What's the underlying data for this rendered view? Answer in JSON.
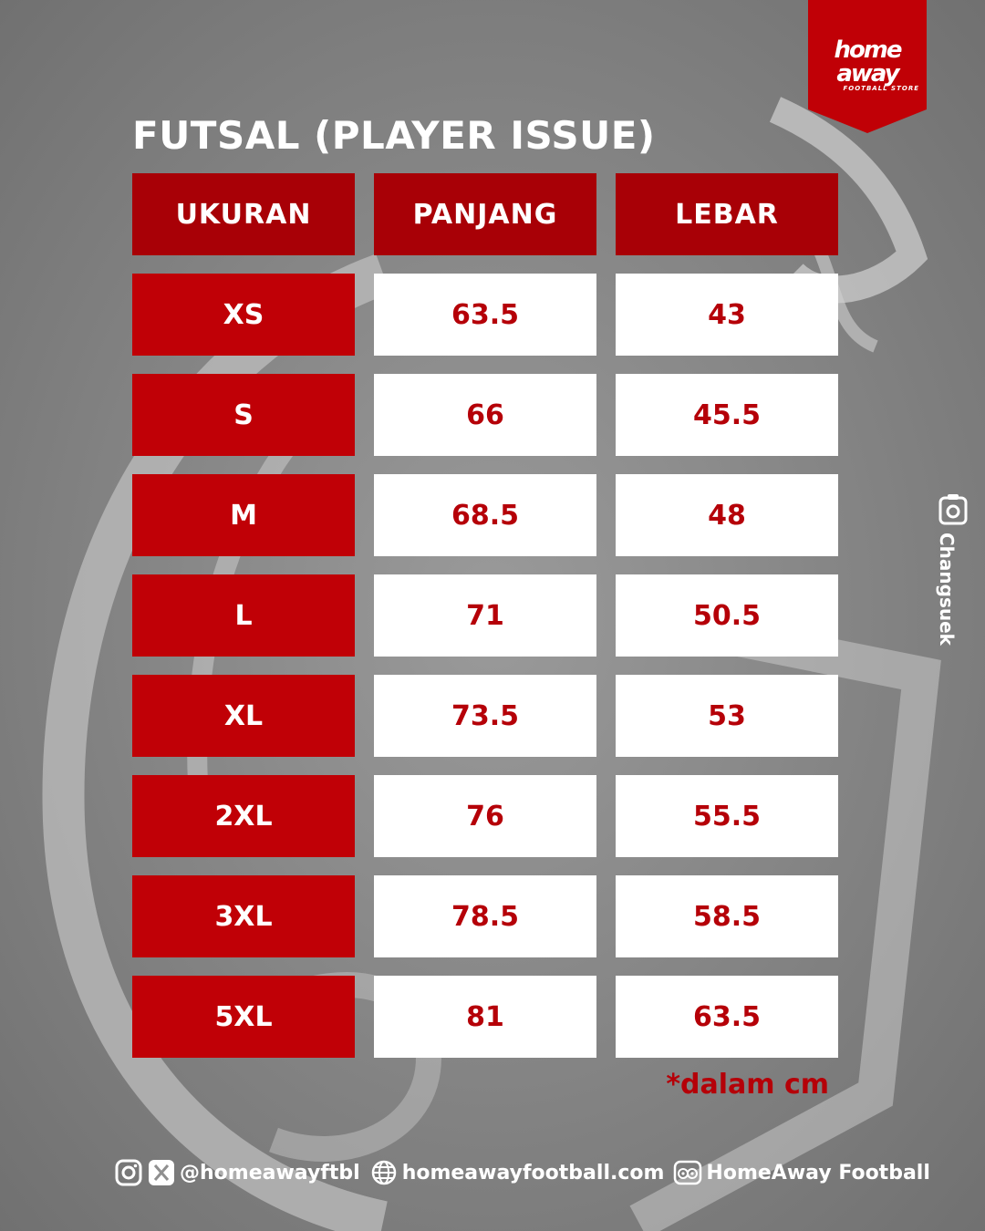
{
  "brand": {
    "logo_text": "home away",
    "logo_subtext": "FOOTBALL STORE",
    "color": "#c00006"
  },
  "title": "FUTSAL (PLAYER ISSUE)",
  "table": {
    "headers": [
      "UKURAN",
      "PANJANG",
      "LEBAR"
    ],
    "rows": [
      [
        "XS",
        "63.5",
        "43"
      ],
      [
        "S",
        "66",
        "45.5"
      ],
      [
        "M",
        "68.5",
        "48"
      ],
      [
        "L",
        "71",
        "50.5"
      ],
      [
        "XL",
        "73.5",
        "53"
      ],
      [
        "2XL",
        "76",
        "55.5"
      ],
      [
        "3XL",
        "78.5",
        "58.5"
      ],
      [
        "5XL",
        "81",
        "63.5"
      ]
    ]
  },
  "unit_note": "*dalam cm",
  "photo_credit": "Changsuek",
  "footer": {
    "social_handle": "@homeawayftbl",
    "website": "homeawayfootball.com",
    "tripadvisor_name": "HomeAway Football"
  },
  "colors": {
    "header_red": "#a80006",
    "size_red": "#c00006",
    "value_text": "#b50008",
    "background": "#8f8f8f"
  }
}
